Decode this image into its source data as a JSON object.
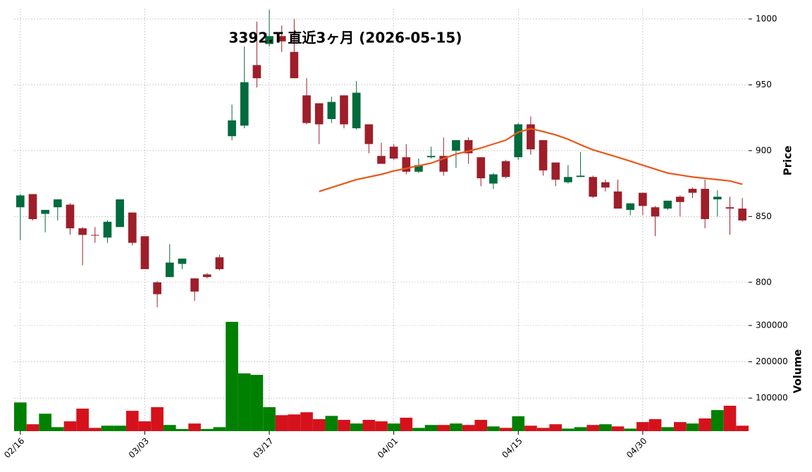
{
  "chart_data": {
    "type": "candlestick",
    "title": "3392.T  直近3ヶ月 (2026-05-15)",
    "categories": [
      "02/16",
      null,
      null,
      null,
      null,
      null,
      null,
      null,
      null,
      null,
      "03/03",
      null,
      null,
      null,
      null,
      null,
      null,
      null,
      null,
      null,
      "03/17",
      null,
      null,
      null,
      null,
      null,
      null,
      null,
      null,
      null,
      "04/01",
      null,
      null,
      null,
      null,
      null,
      null,
      null,
      null,
      null,
      "04/15",
      null,
      null,
      null,
      null,
      null,
      null,
      null,
      null,
      null,
      "04/30",
      null,
      null,
      null,
      null,
      null,
      null,
      null,
      null
    ],
    "open": [
      857,
      867,
      852,
      857,
      859,
      841,
      836,
      834,
      842,
      853,
      835,
      800,
      804,
      814,
      803,
      806,
      819,
      911,
      919,
      965,
      981,
      987,
      975,
      942,
      936,
      924,
      942,
      917,
      920,
      896,
      903,
      895,
      884,
      895,
      896,
      900,
      908,
      895,
      875,
      892,
      895,
      920,
      908,
      891,
      876,
      880,
      880,
      876,
      869,
      855,
      868,
      857,
      856,
      865,
      871,
      871,
      863,
      857,
      856
    ],
    "high": [
      867,
      867,
      855,
      863,
      860,
      842,
      842,
      847,
      863,
      853,
      835,
      801,
      829,
      818,
      803,
      807,
      821,
      935,
      979,
      998,
      1007,
      995,
      1000,
      955,
      936,
      941,
      942,
      953,
      920,
      906,
      905,
      905,
      894,
      903,
      910,
      908,
      910,
      895,
      883,
      893,
      921,
      926,
      908,
      891,
      889,
      899,
      881,
      878,
      878,
      860,
      868,
      858,
      862,
      866,
      872,
      878,
      870,
      865,
      864
    ],
    "low": [
      832,
      847,
      838,
      847,
      836,
      813,
      830,
      830,
      842,
      828,
      810,
      781,
      804,
      810,
      786,
      803,
      809,
      908,
      917,
      948,
      979,
      975,
      955,
      920,
      905,
      921,
      917,
      916,
      898,
      890,
      893,
      882,
      883,
      894,
      881,
      887,
      890,
      873,
      871,
      879,
      893,
      897,
      881,
      873,
      875,
      880,
      864,
      869,
      856,
      851,
      851,
      835,
      855,
      850,
      864,
      841,
      850,
      836,
      846
    ],
    "close": [
      866,
      848,
      855,
      863,
      841,
      836,
      835.5,
      846,
      863,
      830,
      810,
      791,
      815,
      818,
      793,
      804,
      810,
      923,
      952,
      955,
      987,
      983,
      955,
      921,
      920,
      937,
      920,
      944,
      905,
      890,
      894,
      884,
      889,
      896,
      884,
      908,
      898,
      879,
      882,
      880,
      920,
      901,
      885,
      878,
      880,
      881,
      865,
      872,
      856,
      860,
      858,
      850,
      862,
      861,
      868,
      848,
      865,
      856,
      847
    ],
    "volume": [
      88000,
      28000,
      57000,
      20000,
      36000,
      71000,
      18000,
      24000,
      24000,
      65000,
      36000,
      75000,
      26000,
      15000,
      30000,
      15000,
      20000,
      310000,
      168000,
      164000,
      75000,
      53000,
      55000,
      61000,
      42000,
      51000,
      40000,
      30000,
      40000,
      36000,
      30000,
      46000,
      18000,
      26000,
      26000,
      30000,
      26000,
      40000,
      22000,
      18000,
      50000,
      24000,
      18000,
      28000,
      16000,
      20000,
      26000,
      28000,
      22000,
      16000,
      34000,
      42000,
      20000,
      34000,
      30000,
      44000,
      67000,
      79000,
      24000
    ],
    "ma": {
      "color": "#e8581a",
      "values": [
        null,
        null,
        null,
        null,
        null,
        null,
        null,
        null,
        null,
        null,
        null,
        null,
        null,
        null,
        null,
        null,
        null,
        null,
        null,
        null,
        null,
        null,
        null,
        null,
        869,
        872,
        875,
        878,
        880,
        882,
        884.6,
        886.5,
        888.5,
        890.5,
        894,
        897.4,
        899.7,
        902,
        905,
        908,
        914,
        916.7,
        914.5,
        912,
        908.7,
        904.5,
        900.6,
        897.8,
        895,
        892,
        889,
        886,
        883,
        881.5,
        880,
        879,
        878,
        877,
        874.5
      ]
    },
    "up_color": "#006b3d",
    "down_color": "#9e1e2a",
    "volume_up_color": "#008000",
    "volume_down_color": "#d5121b",
    "ylabel": "Price",
    "volume_label": "Volume",
    "ylim": [
      779,
      1008
    ],
    "yticks": [
      800,
      850,
      900,
      950,
      1000
    ],
    "volume_ylim": [
      9000,
      333000
    ],
    "volume_yticks": [
      100000,
      200000,
      300000
    ],
    "grid": true
  }
}
